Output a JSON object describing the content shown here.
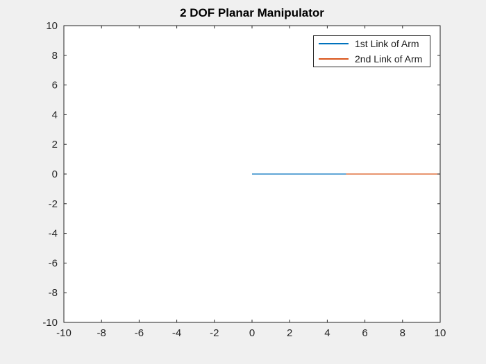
{
  "figure": {
    "background_color": "#f0f0f0",
    "plot_background_color": "#ffffff",
    "axis_color": "#262626",
    "tick_label_color": "#262626",
    "title_color": "#000000",
    "legend_text_color": "#1a1a1a",
    "legend_border_color": "#262626",
    "legend_background_color": "#ffffff"
  },
  "chart_data": {
    "type": "line",
    "title": "2 DOF Planar Manipulator",
    "xlabel": "",
    "ylabel": "",
    "xlim": [
      -10,
      10
    ],
    "ylim": [
      -10,
      10
    ],
    "xticks": [
      -10,
      -8,
      -6,
      -4,
      -2,
      0,
      2,
      4,
      6,
      8,
      10
    ],
    "yticks": [
      -10,
      -8,
      -6,
      -4,
      -2,
      0,
      2,
      4,
      6,
      8,
      10
    ],
    "grid": false,
    "legend_position": "top-right",
    "series": [
      {
        "name": "1st Link of Arm",
        "color": "#0072BD",
        "x": [
          0,
          5
        ],
        "y": [
          0,
          0
        ]
      },
      {
        "name": "2nd Link of Arm",
        "color": "#D95319",
        "x": [
          5,
          10
        ],
        "y": [
          0,
          0
        ]
      }
    ]
  }
}
